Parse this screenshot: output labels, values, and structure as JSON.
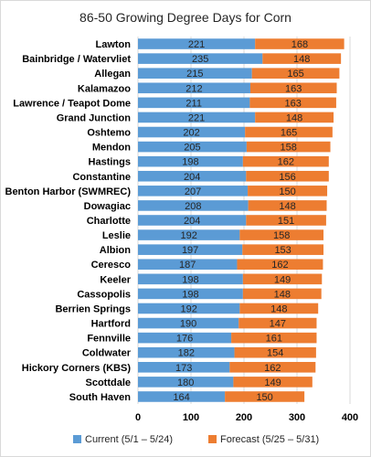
{
  "chart_data": {
    "type": "bar",
    "orientation": "horizontal",
    "stacked": true,
    "title": "86-50 Growing Degree Days for Corn",
    "categories": [
      "Lawton",
      "Bainbridge / Watervliet",
      "Allegan",
      "Kalamazoo",
      "Lawrence / Teapot Dome",
      "Grand Junction",
      "Oshtemo",
      "Mendon",
      "Hastings",
      "Constantine",
      "Benton Harbor (SWMREC)",
      "Dowagiac",
      "Charlotte",
      "Leslie",
      "Albion",
      "Ceresco",
      "Keeler",
      "Cassopolis",
      "Berrien Springs",
      "Hartford",
      "Fennville",
      "Coldwater",
      "Hickory Corners (KBS)",
      "Scottdale",
      "South Haven"
    ],
    "series": [
      {
        "name": "Current (5/1 – 5/24)",
        "color": "#5b9bd5",
        "values": [
          221,
          235,
          215,
          212,
          211,
          221,
          202,
          205,
          198,
          204,
          207,
          208,
          204,
          192,
          197,
          187,
          198,
          198,
          192,
          190,
          176,
          182,
          173,
          180,
          164
        ]
      },
      {
        "name": "Forecast (5/25 – 5/31)",
        "color": "#ed7d31",
        "values": [
          168,
          148,
          165,
          163,
          163,
          148,
          165,
          158,
          162,
          156,
          150,
          148,
          151,
          158,
          153,
          162,
          149,
          148,
          148,
          147,
          161,
          154,
          162,
          149,
          150
        ]
      }
    ],
    "xlim": [
      0,
      400
    ],
    "xticks": [
      0,
      100,
      200,
      300,
      400
    ],
    "grid": true,
    "legend": "bottom"
  }
}
